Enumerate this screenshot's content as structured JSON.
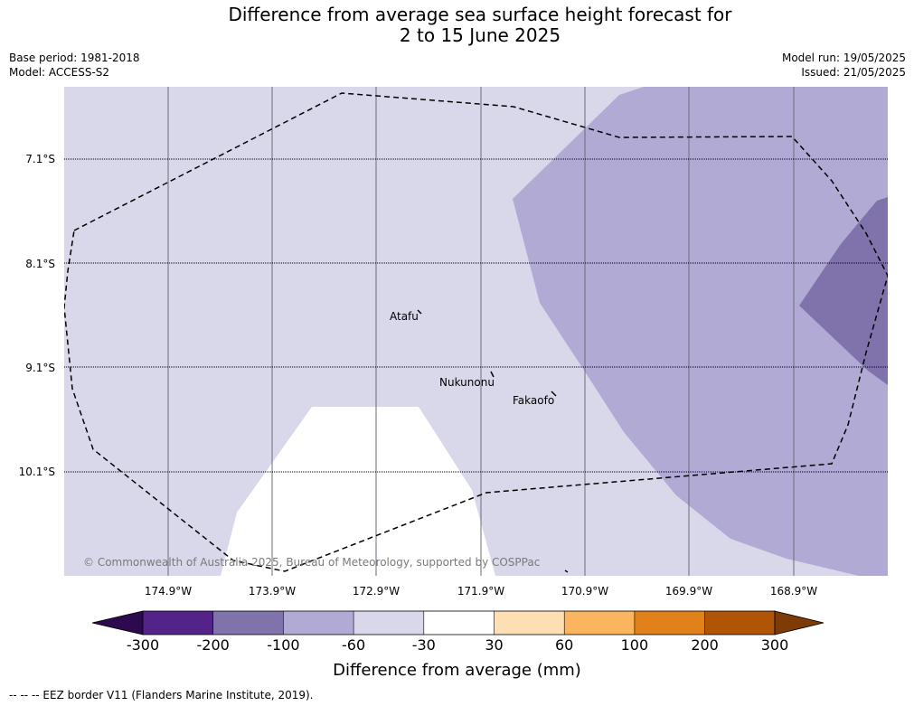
{
  "title_line1": "Difference from average sea surface height forecast for",
  "title_line2": "2 to 15 June 2025",
  "base_period": "Base period: 1981-2018",
  "model": "Model: ACCESS-S2",
  "model_run": "Model run: 19/05/2025",
  "issued": "Issued: 21/05/2025",
  "latitudes": [
    "7.1°S",
    "8.1°S",
    "9.1°S",
    "10.1°S"
  ],
  "longitudes": [
    "174.9°W",
    "173.9°W",
    "172.9°W",
    "171.9°W",
    "170.9°W",
    "169.9°W",
    "168.9°W"
  ],
  "places": [
    "Atafu",
    "Nukunonu",
    "Fakaofo"
  ],
  "copyright": "© Commonwealth of Australia 2025, Bureau of Meteorology, supported by COSPPac",
  "colorbar": {
    "ticks": [
      "-300",
      "-200",
      "-100",
      "-60",
      "-30",
      "30",
      "60",
      "100",
      "200",
      "300"
    ],
    "colors": [
      "#2d0a4e",
      "#54238a",
      "#8072ab",
      "#b0aad4",
      "#d8d8ea",
      "#ffffff",
      "#fedfb4",
      "#fbb55f",
      "#e0811a",
      "#b05406",
      "#7e3a07"
    ],
    "label": "Difference from average (mm)"
  },
  "footer": "--  --  -- EEZ border V11 (Flanders Marine Institute, 2019)."
}
